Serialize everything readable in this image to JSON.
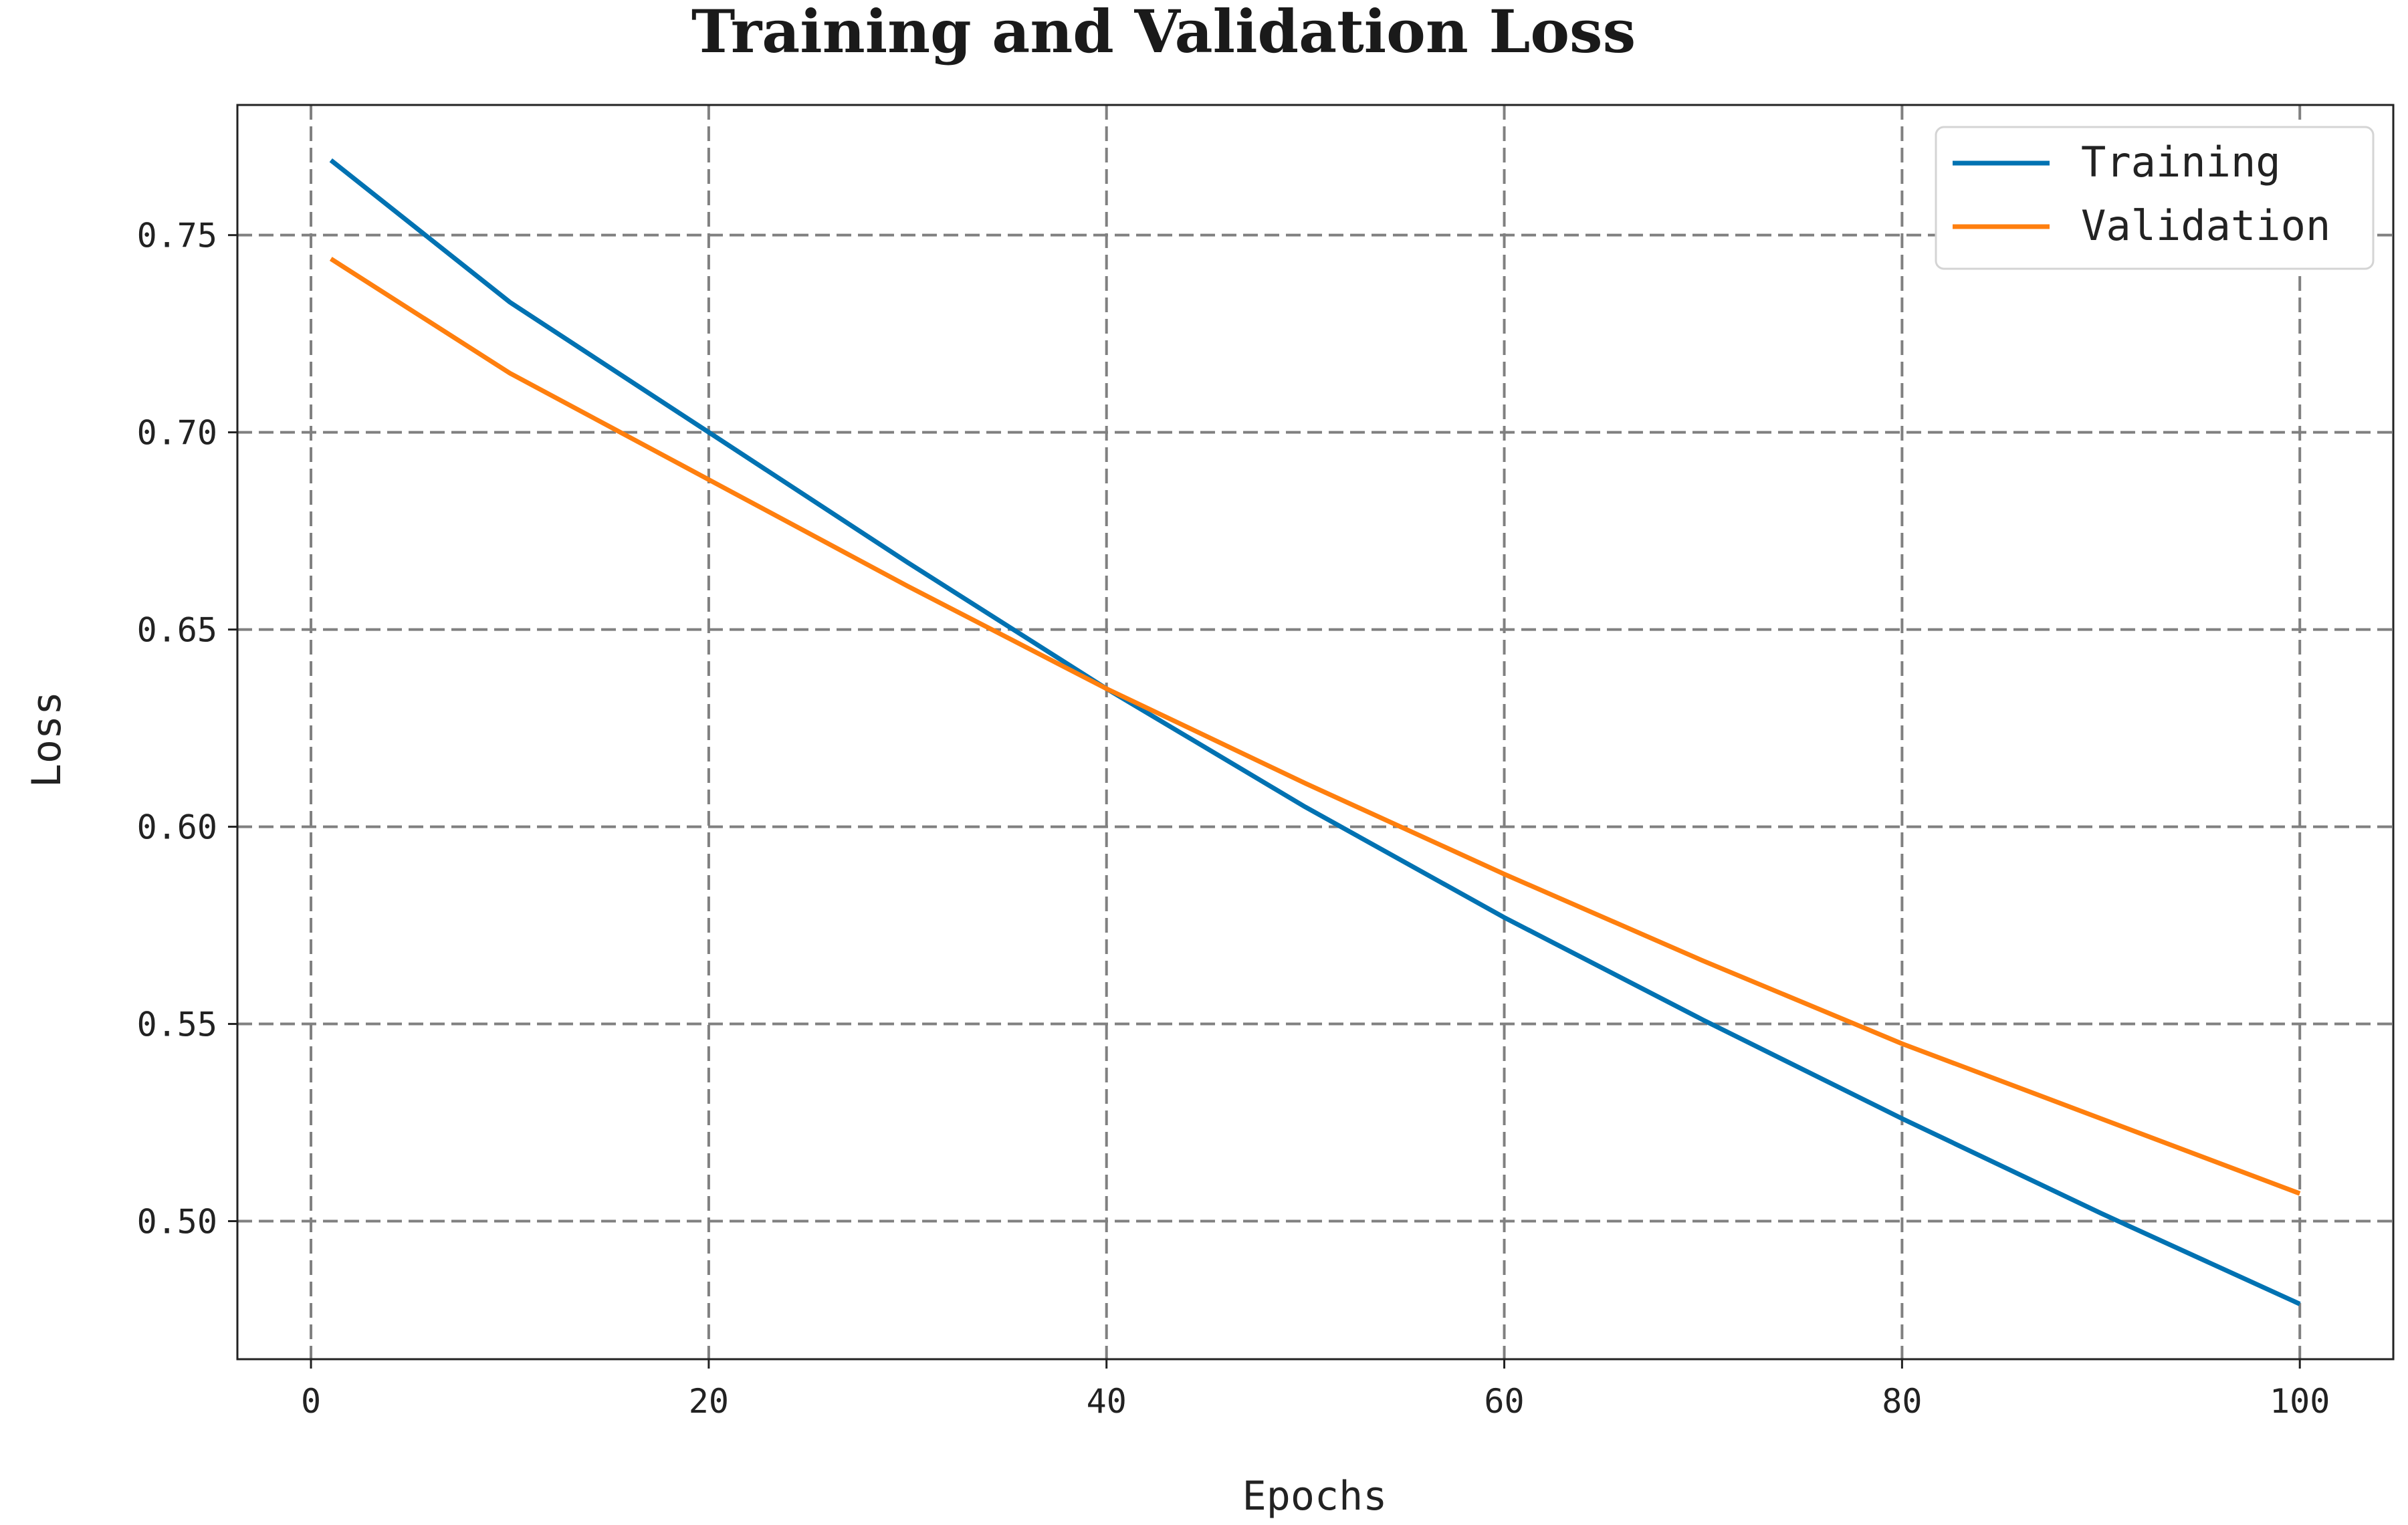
{
  "chart_data": {
    "type": "line",
    "title": "Training and Validation Loss",
    "xlabel": "Epochs",
    "ylabel": "Loss",
    "xlim": [
      -3.7,
      104.7
    ],
    "ylim": [
      0.465,
      0.783
    ],
    "xticks": [
      0,
      20,
      40,
      60,
      80,
      100
    ],
    "xtick_labels": [
      "0",
      "20",
      "40",
      "60",
      "80",
      "100"
    ],
    "yticks": [
      0.5,
      0.55,
      0.6,
      0.65,
      0.7,
      0.75
    ],
    "ytick_labels": [
      "0.50",
      "0.55",
      "0.60",
      "0.65",
      "0.70",
      "0.75"
    ],
    "grid": true,
    "legend_position": "top-right",
    "x": [
      1,
      10,
      20,
      30,
      40,
      50,
      60,
      70,
      80,
      90,
      100
    ],
    "series": [
      {
        "name": "Training",
        "color": "#0072B2",
        "values": [
          0.769,
          0.733,
          0.7,
          0.667,
          0.635,
          0.605,
          0.577,
          0.551,
          0.526,
          0.502,
          0.479
        ]
      },
      {
        "name": "Validation",
        "color": "#FF7F0E",
        "values": [
          0.744,
          0.715,
          0.688,
          0.661,
          0.635,
          0.611,
          0.588,
          0.566,
          0.545,
          0.526,
          0.507
        ]
      }
    ]
  }
}
